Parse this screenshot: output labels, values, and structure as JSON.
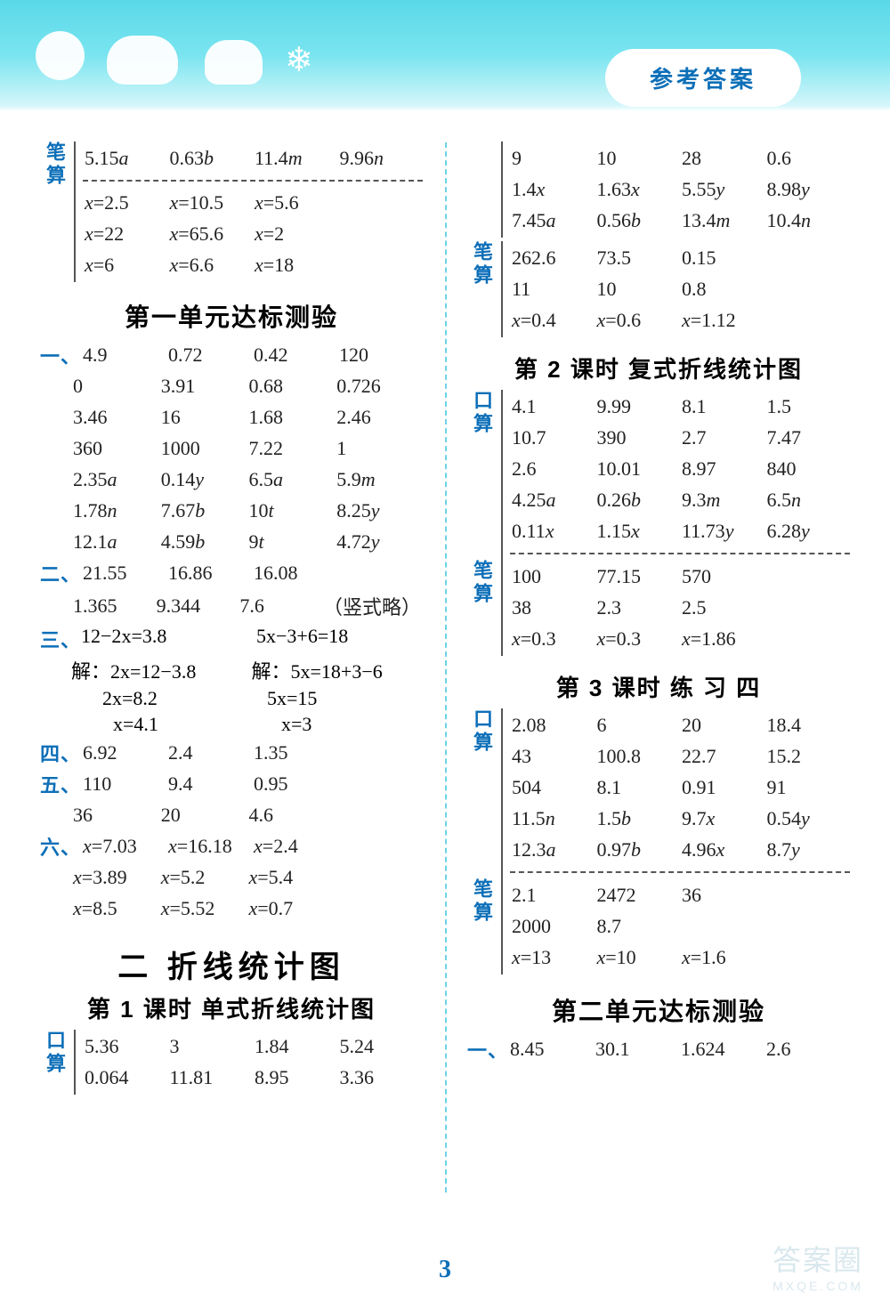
{
  "header": {
    "pill": "参考答案"
  },
  "page_number": "3",
  "watermark": {
    "main": "答案圈",
    "sub": "MXQE.COM"
  },
  "left": {
    "bisuan_top": {
      "r1": [
        "5.15a",
        "0.63b",
        "11.4m",
        "9.96n"
      ],
      "r2": [
        "x=2.5",
        "x=10.5",
        "x=5.6",
        ""
      ],
      "r3": [
        "x=22",
        "x=65.6",
        "x=2",
        ""
      ],
      "r4": [
        "x=6",
        "x=6.6",
        "x=18",
        ""
      ]
    },
    "unit1_title": "第一单元达标测验",
    "sec1": {
      "label": "一、",
      "rows": [
        [
          "4.9",
          "0.72",
          "0.42",
          "120"
        ],
        [
          "0",
          "3.91",
          "0.68",
          "0.726"
        ],
        [
          "3.46",
          "16",
          "1.68",
          "2.46"
        ],
        [
          "360",
          "1000",
          "7.22",
          "1"
        ],
        [
          "2.35a",
          "0.14y",
          "6.5a",
          "5.9m"
        ],
        [
          "1.78n",
          "7.67b",
          "10t",
          "8.25y"
        ],
        [
          "12.1a",
          "4.59b",
          "9t",
          "4.72y"
        ]
      ]
    },
    "sec2": {
      "label": "二、",
      "rows": [
        [
          "21.55",
          "16.86",
          "16.08",
          ""
        ],
        [
          "1.365",
          "9.344",
          "7.6",
          "（竖式略）"
        ]
      ]
    },
    "sec3": {
      "label": "三、",
      "pair_top": [
        "12−2x=3.8",
        "5x−3+6=18"
      ],
      "pair_a": [
        "解：2x=12−3.8",
        "解：5x=18+3−6"
      ],
      "pair_b": [
        "2x=8.2",
        "5x=15"
      ],
      "pair_c": [
        "x=4.1",
        "x=3"
      ]
    },
    "sec4": {
      "label": "四、",
      "rows": [
        [
          "6.92",
          "2.4",
          "1.35",
          ""
        ]
      ]
    },
    "sec5": {
      "label": "五、",
      "rows": [
        [
          "110",
          "9.4",
          "0.95",
          ""
        ],
        [
          "36",
          "20",
          "4.6",
          ""
        ]
      ]
    },
    "sec6": {
      "label": "六、",
      "rows": [
        [
          "x=7.03",
          "x=16.18",
          "x=2.4",
          ""
        ],
        [
          "x=3.89",
          "x=5.2",
          "x=5.4",
          ""
        ],
        [
          "x=8.5",
          "x=5.52",
          "x=0.7",
          ""
        ]
      ]
    },
    "chapter2_title": "二  折线统计图",
    "lesson1_title": "第 1 课时  单式折线统计图",
    "kousuan_bottom": {
      "label": "口算",
      "rows": [
        [
          "5.36",
          "3",
          "1.84",
          "5.24"
        ],
        [
          "0.064",
          "11.81",
          "8.95",
          "3.36"
        ]
      ]
    }
  },
  "right": {
    "top_rows": [
      [
        "9",
        "10",
        "28",
        "0.6"
      ],
      [
        "1.4x",
        "1.63x",
        "5.55y",
        "8.98y"
      ],
      [
        "7.45a",
        "0.56b",
        "13.4m",
        "10.4n"
      ]
    ],
    "bisuan_top": {
      "rows": [
        [
          "262.6",
          "73.5",
          "0.15",
          ""
        ],
        [
          "11",
          "10",
          "0.8",
          ""
        ],
        [
          "x=0.4",
          "x=0.6",
          "x=1.12",
          ""
        ]
      ]
    },
    "lesson2_title": "第 2 课时 复式折线统计图",
    "l2_kousuan": {
      "rows": [
        [
          "4.1",
          "9.99",
          "8.1",
          "1.5"
        ],
        [
          "10.7",
          "390",
          "2.7",
          "7.47"
        ],
        [
          "2.6",
          "10.01",
          "8.97",
          "840"
        ],
        [
          "4.25a",
          "0.26b",
          "9.3m",
          "6.5n"
        ],
        [
          "0.11x",
          "1.15x",
          "11.73y",
          "6.28y"
        ]
      ]
    },
    "l2_bisuan": {
      "rows": [
        [
          "100",
          "77.15",
          "570",
          ""
        ],
        [
          "38",
          "2.3",
          "2.5",
          ""
        ],
        [
          "x=0.3",
          "x=0.3",
          "x=1.86",
          ""
        ]
      ]
    },
    "lesson3_title": "第 3 课时  练    习    四",
    "l3_kousuan": {
      "rows": [
        [
          "2.08",
          "6",
          "20",
          "18.4"
        ],
        [
          "43",
          "100.8",
          "22.7",
          "15.2"
        ],
        [
          "504",
          "8.1",
          "0.91",
          "91"
        ],
        [
          "11.5n",
          "1.5b",
          "9.7x",
          "0.54y"
        ],
        [
          "12.3a",
          "0.97b",
          "4.96x",
          "8.7y"
        ]
      ]
    },
    "l3_bisuan": {
      "rows": [
        [
          "2.1",
          "2472",
          "36",
          ""
        ],
        [
          "2000",
          "8.7",
          "",
          ""
        ],
        [
          "x=13",
          "x=10",
          "x=1.6",
          ""
        ]
      ]
    },
    "unit2_title": "第二单元达标测验",
    "sec1": {
      "label": "一、",
      "rows": [
        [
          "8.45",
          "30.1",
          "1.624",
          "2.6"
        ]
      ]
    }
  },
  "labels": {
    "bisuan": "笔算",
    "kousuan": "口算"
  }
}
